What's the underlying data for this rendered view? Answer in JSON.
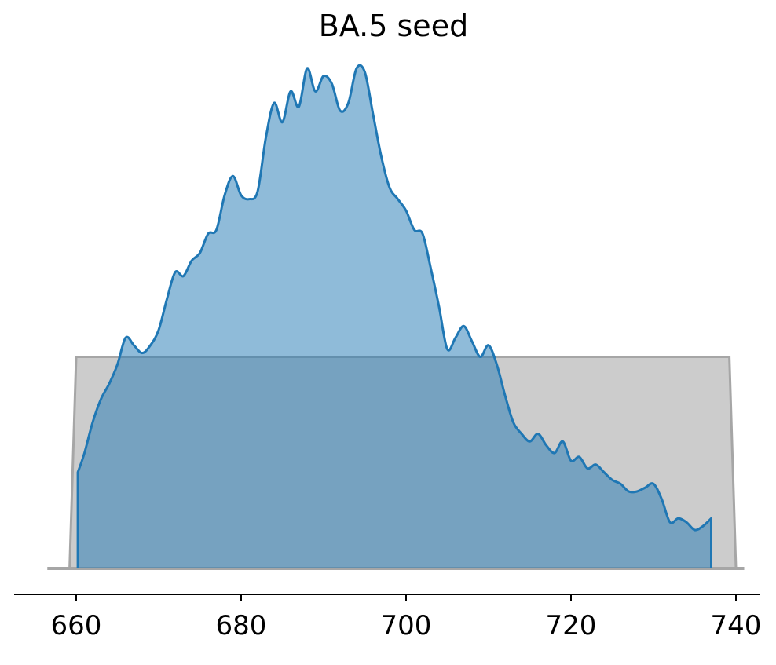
{
  "chart_data": {
    "type": "area",
    "title": "BA.5 seed",
    "xlabel": "",
    "ylabel": "",
    "xlim": [
      655,
      742
    ],
    "x_ticks": [
      660,
      680,
      700,
      720,
      740
    ],
    "y_axis_visible": false,
    "grid": false,
    "legend": "none",
    "series": [
      {
        "kind": "prior",
        "color": "#bfbfbf",
        "line_color": "#a6a6a6",
        "baseline_x": [
          656.5,
          741
        ],
        "support": [
          660,
          740
        ],
        "density": 0.55
      },
      {
        "kind": "posterior",
        "color": "#1f77b4",
        "fill_color": "#5b9fd2",
        "x": [
          660.2,
          661,
          662,
          663,
          664,
          665,
          666,
          667,
          668,
          669,
          670,
          671,
          672,
          673,
          674,
          675,
          676,
          677,
          678,
          679,
          680,
          681,
          682,
          683,
          684,
          685,
          686,
          687,
          688,
          689,
          690,
          691,
          692,
          693,
          694,
          695,
          696,
          697,
          698,
          699,
          700,
          701,
          702,
          703,
          704,
          705,
          706,
          707,
          708,
          709,
          710,
          711,
          712,
          713,
          714,
          715,
          716,
          717,
          718,
          719,
          720,
          721,
          722,
          723,
          724,
          725,
          726,
          727,
          728,
          729,
          730,
          731,
          732,
          733,
          734,
          735,
          736,
          737
        ],
        "y": [
          0.25,
          0.3,
          0.38,
          0.44,
          0.48,
          0.53,
          0.6,
          0.58,
          0.56,
          0.58,
          0.62,
          0.7,
          0.77,
          0.76,
          0.8,
          0.82,
          0.87,
          0.88,
          0.97,
          1.02,
          0.97,
          0.96,
          0.98,
          1.12,
          1.21,
          1.16,
          1.24,
          1.2,
          1.3,
          1.24,
          1.28,
          1.26,
          1.19,
          1.21,
          1.3,
          1.29,
          1.18,
          1.07,
          0.99,
          0.96,
          0.93,
          0.88,
          0.87,
          0.78,
          0.68,
          0.57,
          0.6,
          0.63,
          0.59,
          0.55,
          0.58,
          0.53,
          0.45,
          0.38,
          0.35,
          0.33,
          0.35,
          0.32,
          0.3,
          0.33,
          0.28,
          0.29,
          0.26,
          0.27,
          0.25,
          0.23,
          0.22,
          0.2,
          0.2,
          0.21,
          0.22,
          0.18,
          0.12,
          0.13,
          0.12,
          0.1,
          0.11,
          0.13
        ]
      }
    ]
  }
}
